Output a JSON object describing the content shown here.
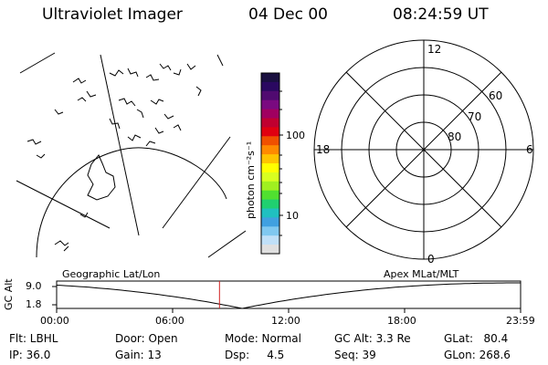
{
  "header": {
    "title": "Ultraviolet Imager",
    "date": "04 Dec 00",
    "time": "08:24:59 UT"
  },
  "colorbar": {
    "label": "photon cm⁻²s⁻¹",
    "ticks": [
      "100",
      "10"
    ],
    "colors": [
      "#1a1040",
      "#2a0860",
      "#500a70",
      "#7a0a80",
      "#a00060",
      "#c00030",
      "#e00010",
      "#f05000",
      "#ff8a00",
      "#ffc400",
      "#ffff00",
      "#d8ff20",
      "#a0f020",
      "#50e030",
      "#20d070",
      "#20c0c0",
      "#40a0e0",
      "#80c8f0",
      "#c0e0f8",
      "#e0e0e0"
    ]
  },
  "polar_grid": {
    "mlt_labels": {
      "top": "12",
      "right": "6",
      "bottom": "0",
      "left": "18"
    },
    "lat_labels": [
      "60",
      "70",
      "80"
    ]
  },
  "timeline": {
    "left_label": "Geographic Lat/Lon",
    "right_label": "Apex MLat/MLT",
    "axis_title": "GC Alt",
    "y_ticks": [
      "9.0",
      "1.8"
    ],
    "x_ticks": [
      "00:00",
      "06:00",
      "12:00",
      "18:00",
      "23:59"
    ],
    "current_time_fraction": 0.351
  },
  "info": {
    "flt": "Flt: LBHL",
    "ip": "IP: 36.0",
    "door": "Door: Open",
    "gain": "Gain: 13",
    "mode": "Mode: Normal",
    "dsp": "Dsp:     4.5",
    "gcalt": "GC Alt: 3.3 Re",
    "seq": "Seq: 39",
    "glat": "GLat:   80.4",
    "glon": "GLon: 268.6"
  }
}
